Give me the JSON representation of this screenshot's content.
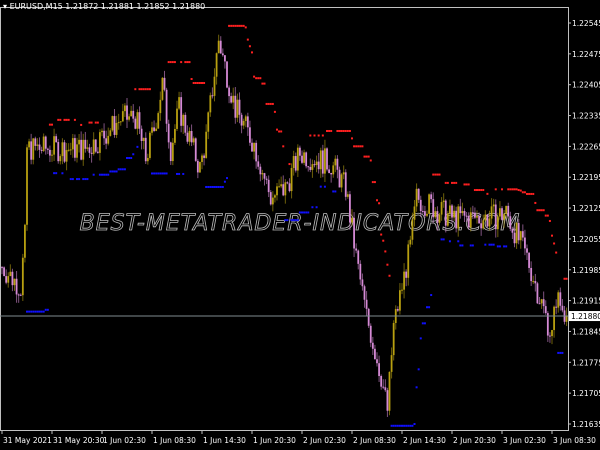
{
  "header": {
    "symbol_timeframe": "EURUSD,M15",
    "ohlc": "1.21872 1.21881 1.21852 1.21880"
  },
  "watermark": "BEST-METATRADER-INDICATORS.COM",
  "colors": {
    "background": "#000000",
    "bull_candle": "#b8a010",
    "bear_candle": "#d58ad5",
    "resistance_dots": "#ff2020",
    "support_dots": "#1010ff",
    "price_line": "#7f8c8f",
    "axis": "#c0c0c0"
  },
  "chart_data": {
    "type": "candlestick",
    "timeframe": "M15",
    "current_price": 1.2188,
    "current_price_label": "1.21880",
    "y_ticks": [
      "1.22545",
      "1.22475",
      "1.22405",
      "1.22335",
      "1.22265",
      "1.22195",
      "1.22125",
      "1.22055",
      "1.21985",
      "1.21915",
      "1.21845",
      "1.21775",
      "1.21705",
      "1.21635"
    ],
    "x_ticks": [
      "31 May 2021",
      "31 May 20:30",
      "1 Jun 02:30",
      "1 Jun 08:30",
      "1 Jun 14:30",
      "1 Jun 20:30",
      "2 Jun 02:30",
      "2 Jun 08:30",
      "2 Jun 14:30",
      "2 Jun 20:30",
      "3 Jun 02:30",
      "3 Jun 08:30"
    ],
    "x_tick_times": [
      "2021-05-31 14:30",
      "2021-05-31 20:30",
      "2021-06-01 02:30",
      "2021-06-01 08:30",
      "2021-06-01 14:30",
      "2021-06-01 20:30",
      "2021-06-02 02:30",
      "2021-06-02 08:30",
      "2021-06-02 14:30",
      "2021-06-02 20:30",
      "2021-06-03 02:30",
      "2021-06-03 08:30"
    ],
    "ylim": [
      1.2161,
      1.2258
    ],
    "approx_close_path": [
      [
        "2021-05-31 14:30",
        1.21991
      ],
      [
        "2021-05-31 16:45",
        1.21946
      ],
      [
        "2021-05-31 17:15",
        1.22058
      ],
      [
        "2021-05-31 17:30",
        1.2226
      ],
      [
        "2021-05-31 20:15",
        1.2226
      ],
      [
        "2021-06-01 00:30",
        1.2226
      ],
      [
        "2021-06-01 02:15",
        1.22283
      ],
      [
        "2021-06-01 04:45",
        1.22327
      ],
      [
        "2021-06-01 06:30",
        1.22332
      ],
      [
        "2021-06-01 07:45",
        1.22238
      ],
      [
        "2021-06-01 08:45",
        1.22305
      ],
      [
        "2021-06-01 09:45",
        1.22406
      ],
      [
        "2021-06-01 10:45",
        1.2226
      ],
      [
        "2021-06-01 11:45",
        1.2235
      ],
      [
        "2021-06-01 14:15",
        1.22215
      ],
      [
        "2021-06-01 15:00",
        1.22283
      ],
      [
        "2021-06-01 16:30",
        1.22507
      ],
      [
        "2021-06-01 18:30",
        1.2235
      ],
      [
        "2021-06-01 20:45",
        1.22271
      ],
      [
        "2021-06-01 22:45",
        1.22148
      ],
      [
        "2021-06-02 00:30",
        1.2217
      ],
      [
        "2021-06-02 02:15",
        1.22249
      ],
      [
        "2021-06-02 06:00",
        1.22226
      ],
      [
        "2021-06-02 07:45",
        1.2217
      ],
      [
        "2021-06-02 09:00",
        1.22013
      ],
      [
        "2021-06-02 10:15",
        1.21879
      ],
      [
        "2021-06-02 12:00",
        1.21744
      ],
      [
        "2021-06-02 12:45",
        1.21665
      ],
      [
        "2021-06-02 13:30",
        1.21856
      ],
      [
        "2021-06-02 15:30",
        1.22036
      ],
      [
        "2021-06-02 16:15",
        1.22148
      ],
      [
        "2021-06-02 20:30",
        1.22103
      ],
      [
        "2021-06-03 01:15",
        1.22103
      ],
      [
        "2021-06-03 03:00",
        1.22114
      ],
      [
        "2021-06-03 05:30",
        1.22013
      ],
      [
        "2021-06-03 07:45",
        1.21879
      ],
      [
        "2021-06-03 08:30",
        1.21834
      ],
      [
        "2021-06-03 09:00",
        1.21923
      ],
      [
        "2021-06-03 10:15",
        1.2188
      ]
    ]
  }
}
